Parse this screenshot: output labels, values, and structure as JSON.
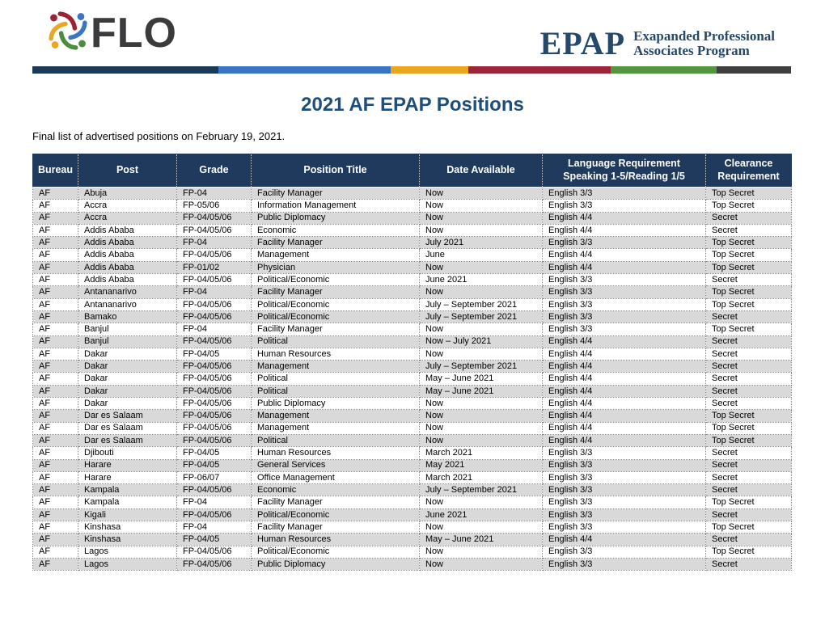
{
  "page": {
    "title": "2021 AF EPAP Positions",
    "subtitle": "Final list of advertised positions on February 19, 2021."
  },
  "logos": {
    "flo_text": "FLO",
    "epap_acronym": "EPAP",
    "epap_line1": "Exapanded Professional",
    "epap_line2": "Associates Program"
  },
  "colors": {
    "table_header_bg": "#1f3a5c",
    "row_alternate": "#d9d9d9",
    "title_text": "#1f4e79",
    "epap_navy": "#25496b",
    "flo_dark": "#3b3b3d"
  },
  "divider": {
    "segments": [
      {
        "color": "#1b3a57",
        "width_pct": 24.5
      },
      {
        "color": "#3b74c0",
        "width_pct": 22.7
      },
      {
        "color": "#e8a71f",
        "width_pct": 10.3
      },
      {
        "color": "#9c2639",
        "width_pct": 18.7
      },
      {
        "color": "#55953f",
        "width_pct": 14.0
      },
      {
        "color": "#3f3f3f",
        "width_pct": 9.8
      }
    ]
  },
  "table": {
    "column_keys": [
      "bureau",
      "post",
      "grade",
      "position-title",
      "date-available",
      "language-requirement",
      "clearance-requirement"
    ],
    "headers": [
      "Bureau",
      "Post",
      "Grade",
      "Position Title",
      "Date Available",
      "Language Requirement\nSpeaking 1-5/Reading 1/5",
      "Clearance\nRequirement"
    ],
    "rows": [
      [
        "AF",
        "Abuja",
        "FP-04",
        "Facility Manager",
        "Now",
        "English 3/3",
        "Top Secret"
      ],
      [
        "AF",
        "Accra",
        "FP-05/06",
        "Information Management",
        "Now",
        "English 3/3",
        "Top Secret"
      ],
      [
        "AF",
        "Accra",
        "FP-04/05/06",
        "Public Diplomacy",
        "Now",
        "English 4/4",
        "Secret"
      ],
      [
        "AF",
        "Addis Ababa",
        "FP-04/05/06",
        "Economic",
        "Now",
        "English 4/4",
        "Secret"
      ],
      [
        "AF",
        "Addis Ababa",
        "FP-04",
        "Facility Manager",
        "July 2021",
        "English 3/3",
        "Top Secret"
      ],
      [
        "AF",
        "Addis Ababa",
        "FP-04/05/06",
        "Management",
        "June",
        "English 4/4",
        "Top Secret"
      ],
      [
        "AF",
        "Addis Ababa",
        "FP-01/02",
        "Physician",
        "Now",
        "English 4/4",
        "Top Secret"
      ],
      [
        "AF",
        "Addis Ababa",
        "FP-04/05/06",
        "Political/Economic",
        "June 2021",
        "English 3/3",
        "Secret"
      ],
      [
        "AF",
        "Antananarivo",
        "FP-04",
        "Facility Manager",
        "Now",
        "English 3/3",
        "Top Secret"
      ],
      [
        "AF",
        "Antananarivo",
        "FP-04/05/06",
        "Political/Economic",
        "July – September 2021",
        "English 3/3",
        "Top Secret"
      ],
      [
        "AF",
        "Bamako",
        "FP-04/05/06",
        "Political/Economic",
        "July – September 2021",
        "English 3/3",
        "Secret"
      ],
      [
        "AF",
        "Banjul",
        "FP-04",
        "Facility Manager",
        "Now",
        "English 3/3",
        "Top Secret"
      ],
      [
        "AF",
        "Banjul",
        "FP-04/05/06",
        "Political",
        "Now – July 2021",
        "English 4/4",
        "Secret"
      ],
      [
        "AF",
        "Dakar",
        "FP-04/05",
        "Human Resources",
        "Now",
        "English 4/4",
        "Secret"
      ],
      [
        "AF",
        "Dakar",
        "FP-04/05/06",
        "Management",
        "July – September 2021",
        "English 4/4",
        "Secret"
      ],
      [
        "AF",
        "Dakar",
        "FP-04/05/06",
        "Political",
        "May – June 2021",
        "English 4/4",
        "Secret"
      ],
      [
        "AF",
        "Dakar",
        "FP-04/05/06",
        "Political",
        "May – June 2021",
        "English 4/4",
        "Secret"
      ],
      [
        "AF",
        "Dakar",
        "FP-04/05/06",
        "Public Diplomacy",
        "Now",
        "English 4/4",
        "Secret"
      ],
      [
        "AF",
        "Dar es Salaam",
        "FP-04/05/06",
        "Management",
        "Now",
        "English 4/4",
        "Top Secret"
      ],
      [
        "AF",
        "Dar es Salaam",
        "FP-04/05/06",
        "Management",
        "Now",
        "English 4/4",
        "Top Secret"
      ],
      [
        "AF",
        "Dar es Salaam",
        "FP-04/05/06",
        "Political",
        "Now",
        "English 4/4",
        "Top Secret"
      ],
      [
        "AF",
        "Djibouti",
        "FP-04/05",
        "Human Resources",
        "March 2021",
        "English 3/3",
        "Secret"
      ],
      [
        "AF",
        "Harare",
        "FP-04/05",
        "General Services",
        "May 2021",
        "English 3/3",
        "Secret"
      ],
      [
        "AF",
        "Harare",
        "FP-06/07",
        "Office Management",
        "March 2021",
        "English 3/3",
        "Secret"
      ],
      [
        "AF",
        "Kampala",
        "FP-04/05/06",
        "Economic",
        "July – September 2021",
        "English 3/3",
        "Secret"
      ],
      [
        "AF",
        "Kampala",
        "FP-04",
        "Facility Manager",
        "Now",
        "English 3/3",
        "Top Secret"
      ],
      [
        "AF",
        "Kigali",
        "FP-04/05/06",
        "Political/Economic",
        "June 2021",
        "English 3/3",
        "Secret"
      ],
      [
        "AF",
        "Kinshasa",
        "FP-04",
        "Facility Manager",
        "Now",
        "English 3/3",
        "Top Secret"
      ],
      [
        "AF",
        "Kinshasa",
        "FP-04/05",
        "Human Resources",
        "May – June 2021",
        "English 4/4",
        "Secret"
      ],
      [
        "AF",
        "Lagos",
        "FP-04/05/06",
        "Political/Economic",
        "Now",
        "English 3/3",
        "Top Secret"
      ],
      [
        "AF",
        "Lagos",
        "FP-04/05/06",
        "Public Diplomacy",
        "Now",
        "English 3/3",
        "Secret"
      ]
    ]
  }
}
